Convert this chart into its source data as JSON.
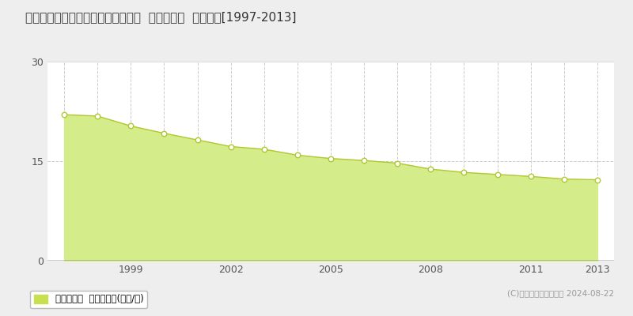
{
  "title": "茨城県ひたちなか市相金町１０番５  基準地価格  地価推移[1997-2013]",
  "years": [
    1997,
    1998,
    1999,
    2000,
    2001,
    2002,
    2003,
    2004,
    2005,
    2006,
    2007,
    2008,
    2009,
    2010,
    2011,
    2012,
    2013
  ],
  "values": [
    22.0,
    21.8,
    20.3,
    19.2,
    18.2,
    17.2,
    16.8,
    15.9,
    15.4,
    15.1,
    14.7,
    13.8,
    13.3,
    13.0,
    12.7,
    12.3,
    12.2
  ],
  "ylim": [
    0,
    30
  ],
  "yticks": [
    0,
    15,
    30
  ],
  "xticks": [
    1999,
    2002,
    2005,
    2008,
    2011,
    2013
  ],
  "fill_color": "#d4ed8a",
  "line_color": "#b0c830",
  "marker_color": "white",
  "marker_edge_color": "#b0c830",
  "grid_color": "#cccccc",
  "background_color": "#eeeeee",
  "plot_bg_color": "#ffffff",
  "legend_label": "基準地価格  平均坪単価(万円/坪)",
  "legend_color": "#c8e050",
  "copyright_text": "(C)土地価格ドットコム 2024-08-22",
  "title_fontsize": 11,
  "tick_fontsize": 9,
  "legend_fontsize": 8.5
}
